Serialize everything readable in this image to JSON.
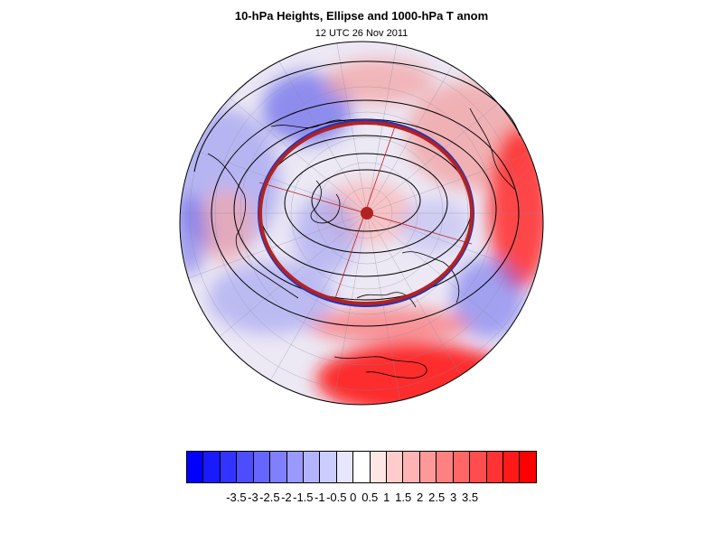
{
  "title": "10-hPa Heights, Ellipse and 1000-hPa T anom",
  "subtitle": "12 UTC 26 Nov 2011",
  "colorbar": {
    "labels": [
      "-3.5",
      "-3",
      "-2.5",
      "-2",
      "-1.5",
      "-1",
      "-0.5",
      "0",
      "0.5",
      "1",
      "1.5",
      "2",
      "2.5",
      "3",
      "3.5"
    ],
    "colors": [
      "#0000ff",
      "#1a1aff",
      "#3333ff",
      "#4d4dff",
      "#6666ff",
      "#8080ff",
      "#9999ff",
      "#b3b3ff",
      "#ccccff",
      "#e6e6ff",
      "#ffffff",
      "#ffe6e6",
      "#ffcccc",
      "#ffb3b3",
      "#ff9999",
      "#ff8080",
      "#ff6666",
      "#ff4d4d",
      "#ff3333",
      "#ff1a1a",
      "#ff0000"
    ]
  },
  "colors": {
    "ellipse_outer": "#2233bb",
    "ellipse_inner": "#b22222",
    "center_dot": "#b22222",
    "contours": "#000000",
    "coast": "#000000",
    "grid": "#8a8aa0"
  }
}
